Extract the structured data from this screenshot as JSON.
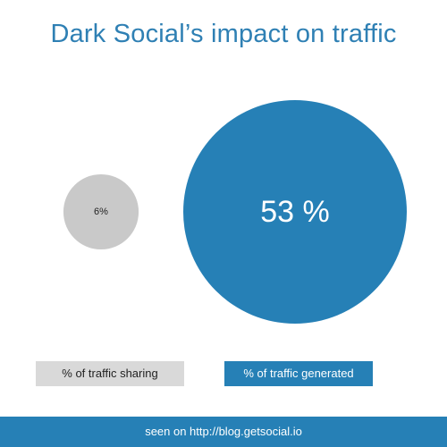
{
  "colors": {
    "title": "#2f80b4",
    "primary": "#2680b6",
    "secondary": "#c9c9c9",
    "secondary_legend": "#d9d9d9"
  },
  "chart_data": {
    "type": "bubble",
    "title": "Dark Social’s impact on traffic",
    "series": [
      {
        "name": "% of traffic sharing",
        "value": 6,
        "label": "6%",
        "color": "#c9c9c9"
      },
      {
        "name": "% of traffic generated",
        "value": 53,
        "label": "53 %",
        "color": "#2680b6"
      }
    ]
  },
  "footer": {
    "text": "seen on http://blog.getsocial.io"
  }
}
